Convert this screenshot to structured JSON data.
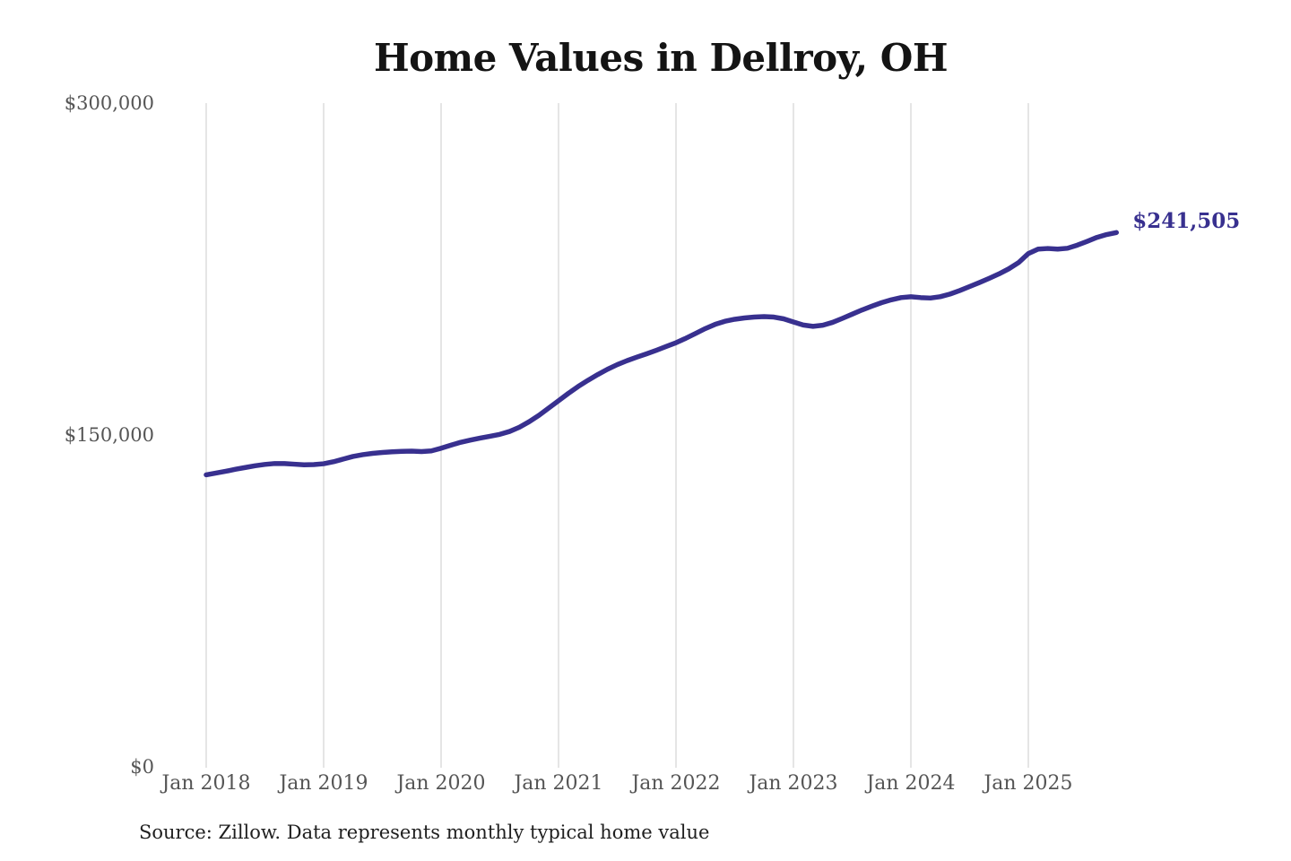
{
  "chart_data": {
    "type": "line",
    "title": "Home Values in Dellroy, OH",
    "source_note": "Source: Zillow. Data represents monthly typical home value",
    "end_label": "$241,505",
    "line_color": "#38308f",
    "grid": "vertical-only",
    "legend_position": "none",
    "ylim": [
      0,
      300000
    ],
    "y_ticks": [
      {
        "value": 300000,
        "label": "$300,000"
      },
      {
        "value": 150000,
        "label": "$150,000"
      },
      {
        "value": 0,
        "label": "$0"
      }
    ],
    "x_ticks": [
      "Jan 2018",
      "Jan 2019",
      "Jan 2020",
      "Jan 2021",
      "Jan 2022",
      "Jan 2023",
      "Jan 2024",
      "Jan 2025"
    ],
    "series": [
      {
        "name": "Monthly typical home value",
        "months": [
          "2018-01",
          "2018-02",
          "2018-03",
          "2018-04",
          "2018-05",
          "2018-06",
          "2018-07",
          "2018-08",
          "2018-09",
          "2018-10",
          "2018-11",
          "2018-12",
          "2019-01",
          "2019-02",
          "2019-03",
          "2019-04",
          "2019-05",
          "2019-06",
          "2019-07",
          "2019-08",
          "2019-09",
          "2019-10",
          "2019-11",
          "2019-12",
          "2020-01",
          "2020-02",
          "2020-03",
          "2020-04",
          "2020-05",
          "2020-06",
          "2020-07",
          "2020-08",
          "2020-09",
          "2020-10",
          "2020-11",
          "2020-12",
          "2021-01",
          "2021-02",
          "2021-03",
          "2021-04",
          "2021-05",
          "2021-06",
          "2021-07",
          "2021-08",
          "2021-09",
          "2021-10",
          "2021-11",
          "2021-12",
          "2022-01",
          "2022-02",
          "2022-03",
          "2022-04",
          "2022-05",
          "2022-06",
          "2022-07",
          "2022-08",
          "2022-09",
          "2022-10",
          "2022-11",
          "2022-12",
          "2023-01",
          "2023-02",
          "2023-03",
          "2023-04",
          "2023-05",
          "2023-06",
          "2023-07",
          "2023-08",
          "2023-09",
          "2023-10",
          "2023-11",
          "2023-12",
          "2024-01",
          "2024-02",
          "2024-03",
          "2024-04",
          "2024-05",
          "2024-06",
          "2024-07",
          "2024-08",
          "2024-09",
          "2024-10",
          "2024-11",
          "2024-12",
          "2025-01",
          "2025-02",
          "2025-03",
          "2025-04",
          "2025-05",
          "2025-06",
          "2025-07",
          "2025-08",
          "2025-09",
          "2025-10"
        ],
        "values": [
          132000,
          132800,
          133600,
          134500,
          135300,
          136100,
          136700,
          137100,
          137100,
          136800,
          136500,
          136600,
          137000,
          137900,
          139100,
          140300,
          141100,
          141700,
          142100,
          142400,
          142600,
          142700,
          142500,
          142800,
          144000,
          145400,
          146700,
          147700,
          148600,
          149400,
          150300,
          151600,
          153500,
          156000,
          158900,
          162200,
          165500,
          168800,
          171900,
          174700,
          177300,
          179700,
          181800,
          183600,
          185200,
          186700,
          188300,
          190000,
          191700,
          193700,
          195900,
          198100,
          200000,
          201400,
          202300,
          202900,
          203300,
          203500,
          203300,
          202500,
          201100,
          199700,
          199100,
          199600,
          200900,
          202700,
          204600,
          206500,
          208200,
          209800,
          211100,
          212100,
          212500,
          212100,
          211900,
          212500,
          213700,
          215300,
          217100,
          218900,
          220800,
          222800,
          225100,
          227900,
          232000,
          234000,
          234300,
          234000,
          234400,
          235800,
          237500,
          239300,
          240600,
          241505
        ]
      }
    ]
  }
}
